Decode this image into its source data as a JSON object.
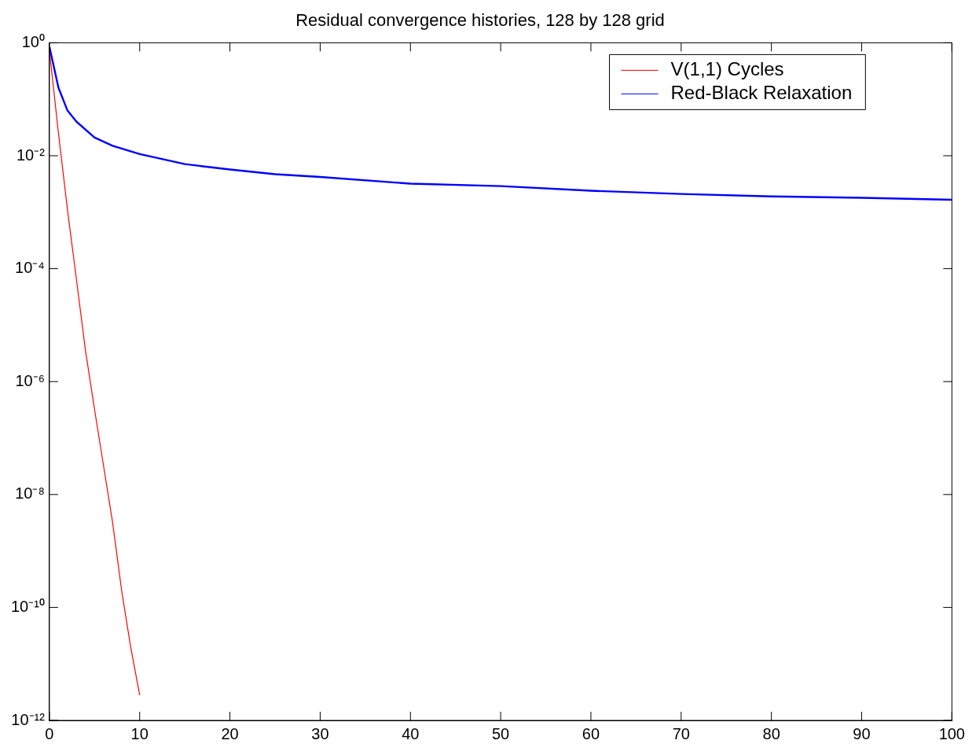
{
  "chart_data": {
    "type": "line",
    "title": "Residual convergence histories, 128 by 128 grid",
    "log": "y",
    "legend": "top right",
    "grid": false,
    "marker": "none",
    "line_style": "solid",
    "xlim": [
      0,
      100
    ],
    "xticks": [
      0,
      10,
      20,
      30,
      40,
      50,
      60,
      70,
      80,
      90,
      100
    ],
    "ylim": [
      1e-12,
      1
    ],
    "yticks": [
      {
        "value": 1,
        "label": "10⁰"
      },
      {
        "value": 0.01,
        "label": "10⁻²"
      },
      {
        "value": 0.0001,
        "label": "10⁻⁴"
      },
      {
        "value": 1e-06,
        "label": "10⁻⁶"
      },
      {
        "value": 1e-08,
        "label": "10⁻⁸"
      },
      {
        "value": 1e-10,
        "label": "10⁻¹⁰"
      },
      {
        "value": 1e-12,
        "label": "10⁻¹²"
      }
    ],
    "series": [
      {
        "name": "V(1,1) Cycles",
        "color": "#ff0000",
        "x": [
          0,
          1,
          2,
          3,
          4,
          5,
          6,
          7,
          8,
          9,
          10
        ],
        "values": [
          0.72,
          0.025,
          0.0011,
          6.3e-05,
          3.5e-06,
          3.2e-07,
          3.2e-08,
          3.2e-09,
          2e-10,
          2e-11,
          2.8e-12
        ]
      },
      {
        "name": "Red-Black Relaxation",
        "color": "#0000ff",
        "x": [
          0,
          1,
          2,
          3,
          5,
          7,
          10,
          15,
          20,
          25,
          30,
          40,
          50,
          60,
          70,
          80,
          90,
          100
        ],
        "values": [
          0.85,
          0.16,
          0.063,
          0.04,
          0.021,
          0.015,
          0.0107,
          0.0071,
          0.0057,
          0.0047,
          0.0042,
          0.0032,
          0.0029,
          0.0024,
          0.0021,
          0.0019,
          0.0018,
          0.00166
        ]
      }
    ]
  }
}
